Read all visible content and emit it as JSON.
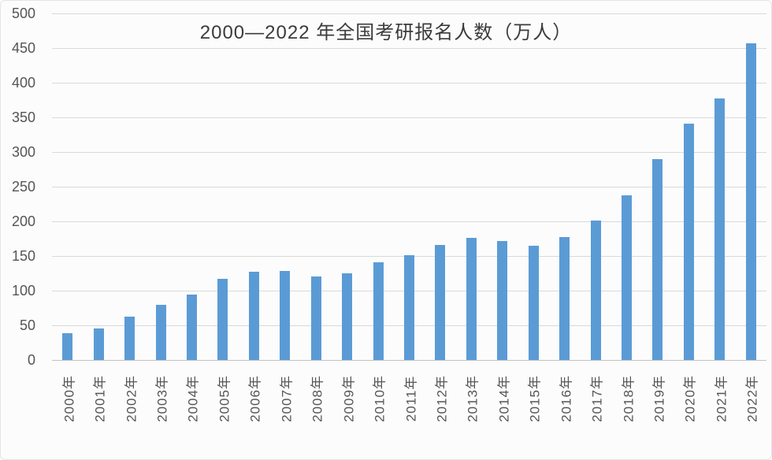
{
  "chart_data": {
    "type": "bar",
    "title": "2000—2022 年全国考研报名人数（万人）",
    "xlabel": "",
    "ylabel": "",
    "unit_label": "万人",
    "categories": [
      "2000年",
      "2001年",
      "2002年",
      "2003年",
      "2004年",
      "2005年",
      "2006年",
      "2007年",
      "2008年",
      "2009年",
      "2010年",
      "2011年",
      "2012年",
      "2013年",
      "2014年",
      "2015年",
      "2016年",
      "2017年",
      "2018年",
      "2019年",
      "2020年",
      "2021年",
      "2022年"
    ],
    "values": [
      39.2,
      46,
      62.4,
      79.7,
      94.5,
      117.2,
      127.1,
      128.2,
      120,
      124.6,
      140.6,
      151.1,
      165.6,
      176,
      172,
      164.9,
      177,
      201,
      238,
      290,
      341,
      377,
      457
    ],
    "ylim": [
      0,
      500
    ],
    "ytick_step": 50,
    "ytick_labels": [
      "0",
      "50",
      "100",
      "150",
      "200",
      "250",
      "300",
      "350",
      "400",
      "450",
      "500"
    ],
    "grid": true,
    "legend_position": "none",
    "colors": {
      "bar": "#5B9BD5",
      "gridline": "#D9D9D9",
      "baseline": "#C2C2C2",
      "tick_text": "#555555",
      "title_text": "#3B3B3B",
      "background": "#FCFCFC"
    }
  }
}
